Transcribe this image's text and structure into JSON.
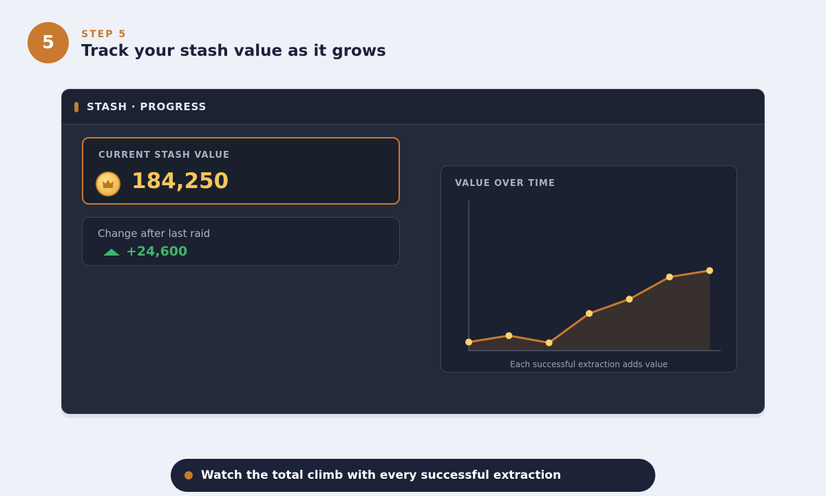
{
  "step": {
    "number": "5",
    "label": "STEP 5",
    "title": "Track your stash value as it grows"
  },
  "window": {
    "title": "STASH · PROGRESS"
  },
  "stash": {
    "label": "CURRENT STASH VALUE",
    "value": "184,250",
    "icon": "crown-coin-icon"
  },
  "change": {
    "label": "Change after last raid",
    "value": "+24,600",
    "icon": "up-arrow-icon"
  },
  "chart": {
    "title": "VALUE OVER TIME",
    "caption": "Each successful extraction adds value"
  },
  "chart_data": {
    "type": "area",
    "title": "VALUE OVER TIME",
    "xlabel": "",
    "ylabel": "",
    "x": [
      1,
      2,
      3,
      4,
      5,
      6,
      7
    ],
    "values": [
      12,
      21,
      11,
      52,
      72,
      103,
      112
    ],
    "ylim": [
      0,
      210
    ],
    "grid": false,
    "colors": {
      "line": "#c97a2f",
      "point": "#ffd36b",
      "area": "#3a322f"
    }
  },
  "banner": {
    "text": "Watch the total climb with every successful extraction"
  },
  "colors": {
    "accent": "#c97a2f",
    "gold": "#f6c65c",
    "positive": "#3fb56b",
    "panel": "#232a3a"
  }
}
